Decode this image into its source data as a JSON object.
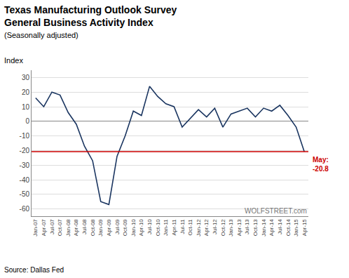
{
  "chart_data": {
    "type": "line",
    "title": "Texas Manufacturing Outlook Survey\nGeneral Business Activity Index",
    "subtitle": "(Seasonally adjusted)",
    "ylabel": "Index",
    "source": "Source: Dallas Fed",
    "watermark": "WOLFSTREET.com",
    "color": "#1a3560",
    "reference_line": {
      "y": -20.8,
      "color": "#cc0000",
      "label": "May:\n-20.8"
    },
    "categories": [
      "Jan-07",
      "Apr-07",
      "Jul-07",
      "Oct-07",
      "Jan-08",
      "Apr-08",
      "Jul-08",
      "Oct-08",
      "Jan-09",
      "Apr-09",
      "Jul-09",
      "Oct-09",
      "Jan-10",
      "Apr-10",
      "Jul-10",
      "Oct-10",
      "Jan-11",
      "Apr-11",
      "Jul-11",
      "Oct-11",
      "Jan-12",
      "Apr-12",
      "Jul-12",
      "Oct-12",
      "Jan-13",
      "Apr-13",
      "Jul-13",
      "Oct-13",
      "Jan-14",
      "Apr-14",
      "Jul-14",
      "Oct-14",
      "Jan-15",
      "Apr-15"
    ],
    "values": [
      16.0,
      10.0,
      20.0,
      18.0,
      6.0,
      -2.0,
      -17.0,
      -27.0,
      -55.0,
      -57.0,
      -24.0,
      -10.0,
      7.0,
      4.0,
      24.0,
      17.0,
      12.0,
      10.0,
      -4.0,
      2.0,
      8.0,
      3.0,
      9.0,
      -4.0,
      5.0,
      7.0,
      9.0,
      3.0,
      9.0,
      7.0,
      11.0,
      4.0,
      -4.0,
      -20.8
    ],
    "ylim": [
      -65,
      35
    ],
    "yticks": [
      -60,
      -50,
      -40,
      -30,
      -20,
      -10,
      0,
      10,
      20,
      30
    ],
    "grid": true
  }
}
